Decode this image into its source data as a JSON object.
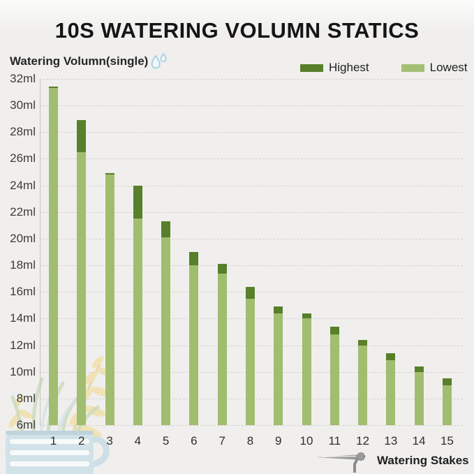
{
  "title": "10S WATERING VOLUMN STATICS",
  "y_axis": {
    "label": "Watering Volumn(single)"
  },
  "x_axis": {
    "label": "Watering Stakes"
  },
  "legend": {
    "items": [
      {
        "label": "Highest",
        "color": "#587f2a"
      },
      {
        "label": "Lowest",
        "color": "#a3bf74"
      }
    ]
  },
  "colors": {
    "bar_light": "#a1bd6f",
    "bar_dark": "#587f2a",
    "gridline": "#d4d2ce",
    "background": "#f0efed",
    "droplet_blue": "#9fcbdd",
    "stake_icon_gray": "#8c8c8c"
  },
  "chart_data": {
    "type": "bar",
    "stacked": true,
    "title": "10S WATERING VOLUMN STATICS",
    "xlabel": "Watering Stakes",
    "ylabel": "Watering Volumn(single)",
    "categories": [
      "1",
      "2",
      "3",
      "4",
      "5",
      "6",
      "7",
      "8",
      "9",
      "10",
      "11",
      "12",
      "13",
      "14",
      "15"
    ],
    "series": [
      {
        "name": "Highest",
        "color": "#587f2a",
        "values": [
          31.4,
          28.9,
          24.9,
          24.0,
          21.3,
          19.0,
          18.1,
          16.4,
          14.9,
          14.4,
          13.4,
          12.4,
          11.4,
          10.4,
          9.5
        ]
      },
      {
        "name": "Lowest",
        "color": "#a1bd6f",
        "values": [
          31.3,
          26.5,
          24.8,
          21.5,
          20.1,
          18.0,
          17.4,
          15.5,
          14.4,
          14.0,
          12.8,
          12.0,
          10.9,
          10.0,
          9.0
        ]
      }
    ],
    "ylim": [
      6,
      32
    ],
    "y_ticks": [
      32,
      30,
      28,
      26,
      24,
      22,
      20,
      18,
      16,
      14,
      12,
      10,
      8,
      6
    ],
    "y_tick_suffix": "ml",
    "grid": "horizontal-dashed",
    "legend_position": "top-right",
    "note": "Bars drawn in Lowest color up to the Lowest value, capped in Highest color up to the Highest value; baseline at 6ml"
  }
}
